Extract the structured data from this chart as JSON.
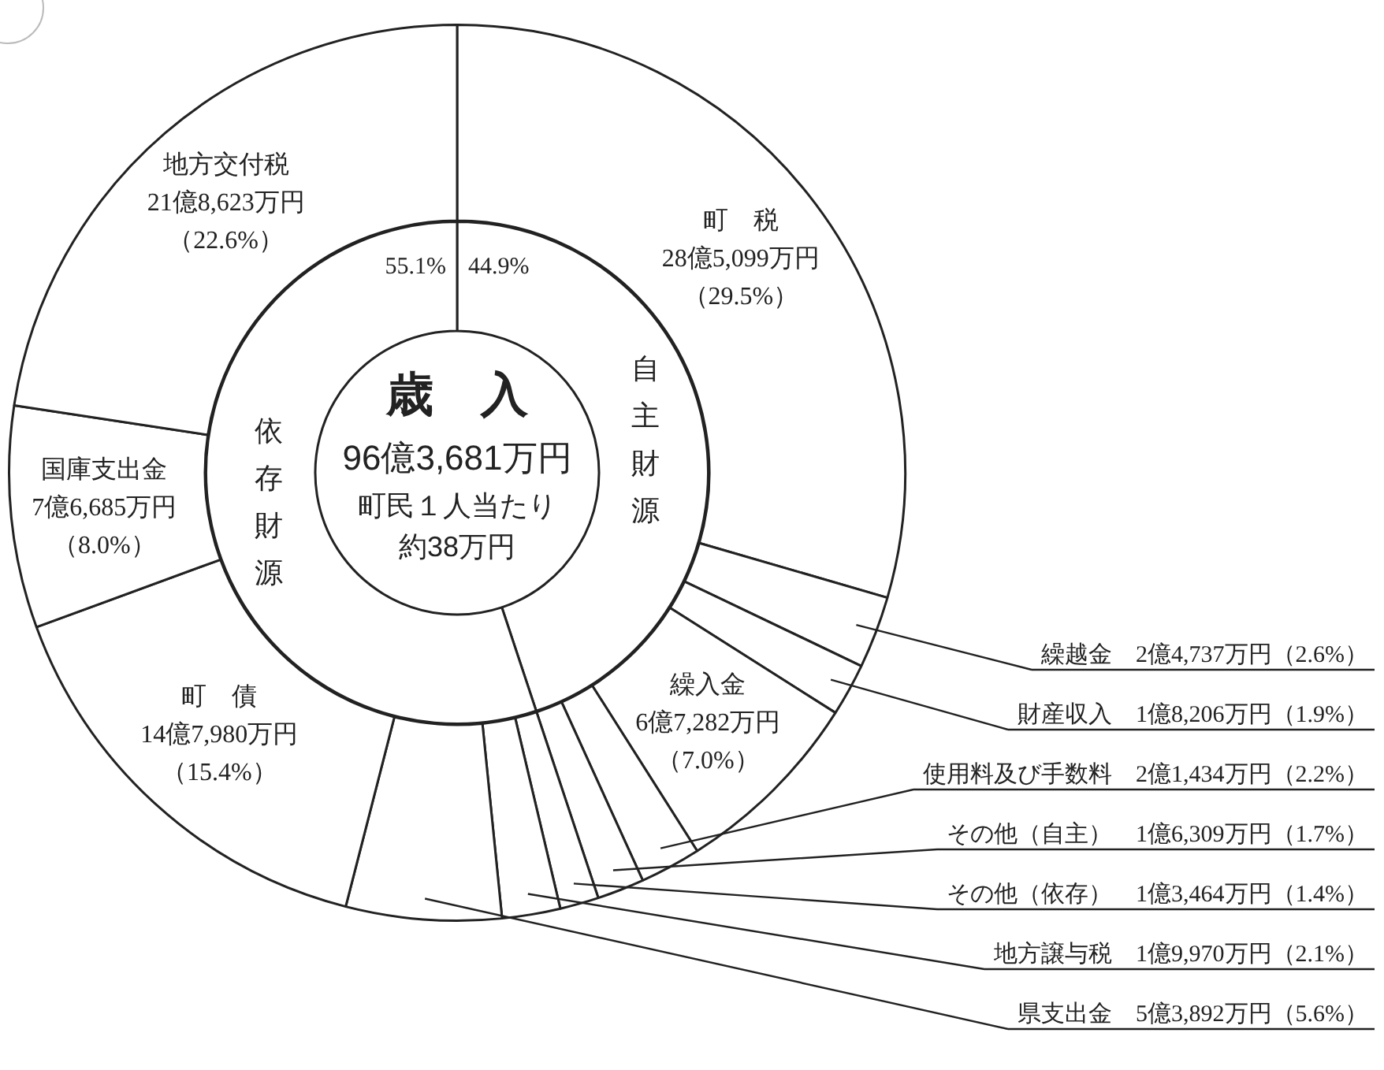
{
  "chart_data": [
    {
      "type": "donut",
      "categories": [
        "町　税",
        "繰越金",
        "財産収入",
        "繰入金",
        "使用料及び手数料",
        "その他（自主）",
        "その他（依存）",
        "地方譲与税",
        "県支出金",
        "町　債",
        "国庫支出金",
        "地方交付税"
      ],
      "values": [
        29.5,
        2.6,
        1.9,
        7.0,
        2.2,
        1.7,
        1.4,
        2.1,
        5.6,
        15.4,
        8.0,
        22.6
      ],
      "colors": [
        "#ffffff",
        "#ffffff",
        "#ffffff",
        "#ffffff",
        "#ffffff",
        "#ffffff",
        "#ffffff",
        "#ffffff",
        "#ffffff",
        "#ffffff",
        "#ffffff",
        "#ffffff"
      ],
      "value_labels": [
        "28億5,099万円（29.5%）",
        "2億4,737万円（2.6%）",
        "1億8,206万円（1.9%）",
        "6億7,282万円（7.0%）",
        "2億1,434万円（2.2%）",
        "1億6,309万円（1.7%）",
        "1億3,464万円（1.4%）",
        "1億9,970万円（2.1%）",
        "5億3,892万円（5.6%）",
        "14億7,980万円（15.4%）",
        "7億6,685万円（8.0%）",
        "21億8,623万円（22.6%）"
      ],
      "annotations": [
        "歳　入",
        "96億3,681万円",
        "町民１人当たり",
        "約38万円"
      ]
    },
    {
      "type": "donut",
      "categories": [
        "自主財源",
        "依存財源"
      ],
      "values": [
        44.9,
        55.1
      ],
      "colors": [
        "#ffffff",
        "#ffffff"
      ],
      "value_labels": [
        "44.9%",
        "55.1%"
      ]
    }
  ]
}
